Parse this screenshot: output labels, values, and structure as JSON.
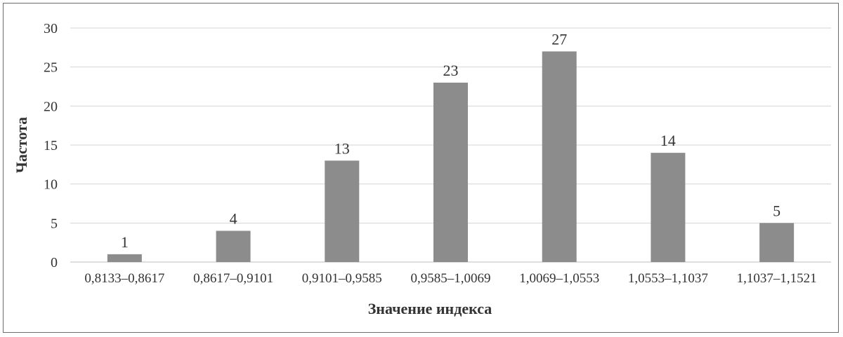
{
  "chart_data": {
    "type": "bar",
    "title": "",
    "xlabel": "Значение индекса",
    "ylabel": "Частота",
    "categories": [
      "0,8133–0,8617",
      "0,8617–0,9101",
      "0,9101–0,9585",
      "0,9585–1,0069",
      "1,0069–1,0553",
      "1,0553–1,1037",
      "1,1037–1,1521"
    ],
    "values": [
      1,
      4,
      13,
      23,
      27,
      14,
      5
    ],
    "data_labels": [
      "1",
      "4",
      "13",
      "23",
      "27",
      "14",
      "5"
    ],
    "ylim": [
      0,
      30
    ],
    "yticks": [
      0,
      5,
      10,
      15,
      20,
      25,
      30
    ],
    "grid": true,
    "legend": "none",
    "colors": {
      "bar": "#8c8c8c",
      "grid": "#d4d4d4",
      "text": "#333333",
      "frame": "#6b6b6b"
    }
  }
}
